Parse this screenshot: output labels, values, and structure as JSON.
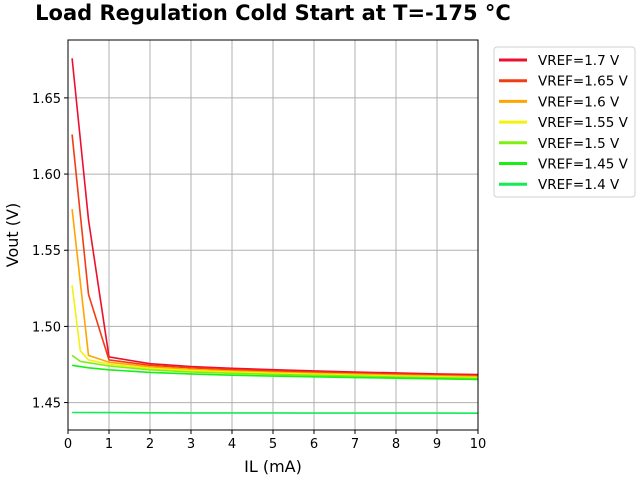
{
  "chart_data": {
    "type": "line",
    "title": "Load Regulation Cold Start at T=-175 °C",
    "xlabel": "IL (mA)",
    "ylabel": "Vout (V)",
    "xlim": [
      0,
      10
    ],
    "ylim": [
      1.432,
      1.688
    ],
    "xticks": [
      "0",
      "1",
      "2",
      "3",
      "4",
      "5",
      "6",
      "7",
      "8",
      "9",
      "10"
    ],
    "yticks": [
      "1.45",
      "1.50",
      "1.55",
      "1.60",
      "1.65"
    ],
    "grid": true,
    "legend_position": "outside-right",
    "series": [
      {
        "name": "VREF=1.7 V",
        "color": "#ee0f2e",
        "x": [
          0.1,
          0.5,
          1,
          2,
          3,
          4,
          5,
          6,
          7,
          8,
          9,
          10
        ],
        "y": [
          1.676,
          1.57,
          1.48,
          1.4755,
          1.4737,
          1.4725,
          1.4716,
          1.4708,
          1.47,
          1.4695,
          1.4688,
          1.4684
        ]
      },
      {
        "name": "VREF=1.65 V",
        "color": "#f23c14",
        "x": [
          0.1,
          0.5,
          1,
          2,
          3,
          4,
          5,
          6,
          7,
          8,
          9,
          10
        ],
        "y": [
          1.626,
          1.521,
          1.478,
          1.4745,
          1.4728,
          1.4716,
          1.4708,
          1.47,
          1.4693,
          1.4687,
          1.4681,
          1.4676
        ]
      },
      {
        "name": "VREF=1.6 V",
        "color": "#ffa500",
        "x": [
          0.1,
          0.5,
          1,
          2,
          3,
          4,
          5,
          6,
          7,
          8,
          9,
          10
        ],
        "y": [
          1.577,
          1.481,
          1.4765,
          1.4735,
          1.4718,
          1.4707,
          1.4699,
          1.4692,
          1.4686,
          1.468,
          1.4675,
          1.467
        ]
      },
      {
        "name": "VREF=1.55 V",
        "color": "#f2f20e",
        "x": [
          0.1,
          0.3,
          0.5,
          1,
          2,
          3,
          4,
          5,
          6,
          7,
          8,
          9,
          10
        ],
        "y": [
          1.527,
          1.484,
          1.478,
          1.4752,
          1.4725,
          1.471,
          1.47,
          1.4693,
          1.4686,
          1.468,
          1.4674,
          1.4669,
          1.4664
        ]
      },
      {
        "name": "VREF=1.5 V",
        "color": "#7ff00e",
        "x": [
          0.1,
          0.3,
          0.5,
          1,
          2,
          3,
          4,
          5,
          6,
          7,
          8,
          9,
          10
        ],
        "y": [
          1.481,
          1.477,
          1.4762,
          1.474,
          1.4715,
          1.4701,
          1.4692,
          1.4685,
          1.4679,
          1.4673,
          1.4668,
          1.4663,
          1.4658
        ]
      },
      {
        "name": "VREF=1.45 V",
        "color": "#17f014",
        "x": [
          0.1,
          0.5,
          1,
          2,
          3,
          4,
          5,
          6,
          7,
          8,
          9,
          10
        ],
        "y": [
          1.4745,
          1.4728,
          1.4715,
          1.4698,
          1.4688,
          1.468,
          1.4674,
          1.4669,
          1.4664,
          1.466,
          1.4656,
          1.4652
        ]
      },
      {
        "name": "VREF=1.4 V",
        "color": "#10ee52",
        "x": [
          0.1,
          1,
          2,
          3,
          4,
          5,
          6,
          7,
          8,
          9,
          10
        ],
        "y": [
          1.4435,
          1.4434,
          1.4433,
          1.4432,
          1.4432,
          1.4432,
          1.4431,
          1.4431,
          1.4431,
          1.4431,
          1.443
        ]
      }
    ]
  }
}
